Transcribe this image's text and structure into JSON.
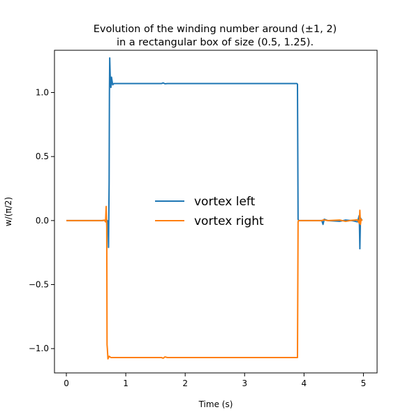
{
  "chart_data": {
    "type": "line",
    "title": "Evolution of the winding number around (±1, 2)",
    "subtitle": "in a rectangular box of size (0.5, 1.25).",
    "xlabel": "Time (s)",
    "ylabel": "w/(π/2)",
    "xlim": [
      -0.2,
      5.23
    ],
    "ylim": [
      -1.19,
      1.33
    ],
    "x_ticks": [
      0,
      1,
      2,
      3,
      4,
      5
    ],
    "y_ticks": [
      -1.0,
      -0.5,
      0.0,
      0.5,
      1.0
    ],
    "x_tick_labels": [
      "0",
      "1",
      "2",
      "3",
      "4",
      "5"
    ],
    "y_tick_labels": [
      "−1.0",
      "−0.5",
      "0.0",
      "0.5",
      "1.0"
    ],
    "grid": false,
    "legend_position": "center",
    "series": [
      {
        "name": "vortex left",
        "color": "#1f77b4",
        "points": [
          [
            0,
            0
          ],
          [
            0.6,
            0
          ],
          [
            0.68,
            0.003
          ],
          [
            0.7,
            -0.005
          ],
          [
            0.71,
            -0.21
          ],
          [
            0.715,
            0.05
          ],
          [
            0.72,
            0.3
          ],
          [
            0.725,
            1.0
          ],
          [
            0.73,
            1.27
          ],
          [
            0.74,
            1.1
          ],
          [
            0.75,
            1.04
          ],
          [
            0.76,
            1.12
          ],
          [
            0.78,
            1.06
          ],
          [
            0.8,
            1.07
          ],
          [
            1.6,
            1.07
          ],
          [
            1.63,
            1.075
          ],
          [
            1.66,
            1.068
          ],
          [
            1.7,
            1.07
          ],
          [
            3.88,
            1.07
          ],
          [
            3.89,
            1.065
          ],
          [
            3.9,
            0.01
          ],
          [
            3.91,
            0
          ],
          [
            4.3,
            0
          ],
          [
            4.32,
            -0.03
          ],
          [
            4.34,
            0.01
          ],
          [
            4.4,
            0
          ],
          [
            4.6,
            -0.006
          ],
          [
            4.7,
            0.004
          ],
          [
            4.8,
            0
          ],
          [
            4.9,
            -0.01
          ],
          [
            4.93,
            0.04
          ],
          [
            4.94,
            -0.22
          ],
          [
            4.95,
            0.02
          ],
          [
            4.98,
            0
          ]
        ]
      },
      {
        "name": "vortex right",
        "color": "#ff7f0e",
        "points": [
          [
            0,
            0
          ],
          [
            0.6,
            0
          ],
          [
            0.64,
            0.003
          ],
          [
            0.66,
            -0.01
          ],
          [
            0.67,
            0.11
          ],
          [
            0.68,
            -0.05
          ],
          [
            0.685,
            -0.97
          ],
          [
            0.69,
            -1.0
          ],
          [
            0.7,
            -1.08
          ],
          [
            0.72,
            -1.06
          ],
          [
            0.75,
            -1.07
          ],
          [
            1.6,
            -1.07
          ],
          [
            1.63,
            -1.075
          ],
          [
            1.66,
            -1.065
          ],
          [
            1.7,
            -1.07
          ],
          [
            3.89,
            -1.07
          ],
          [
            3.9,
            -0.01
          ],
          [
            3.91,
            0
          ],
          [
            4.3,
            0
          ],
          [
            4.33,
            0.005
          ],
          [
            4.4,
            0
          ],
          [
            4.6,
            0.004
          ],
          [
            4.7,
            -0.006
          ],
          [
            4.8,
            0.002
          ],
          [
            4.9,
            0.005
          ],
          [
            4.93,
            -0.02
          ],
          [
            4.94,
            0.08
          ],
          [
            4.95,
            -0.03
          ],
          [
            4.96,
            0.01
          ],
          [
            4.98,
            0
          ]
        ]
      }
    ]
  }
}
